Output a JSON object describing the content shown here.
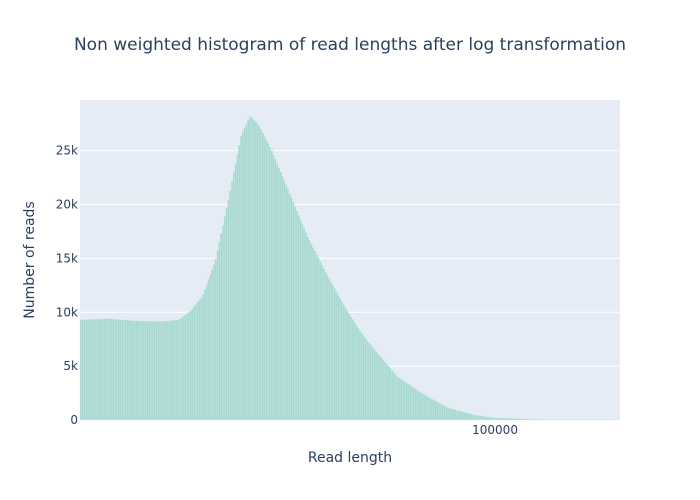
{
  "chart_data": {
    "type": "bar",
    "title": "Non weighted histogram of read lengths after log transformation",
    "xlabel": "Read length",
    "ylabel": "Number of reads",
    "x_scale": "log",
    "xlim": [
      1000,
      400000
    ],
    "ylim": [
      0,
      29700
    ],
    "x_ticks": [
      {
        "value": 100000,
        "label": "100000"
      }
    ],
    "y_ticks": [
      {
        "value": 0,
        "label": "0"
      },
      {
        "value": 5000,
        "label": "5k"
      },
      {
        "value": 10000,
        "label": "10k"
      },
      {
        "value": 15000,
        "label": "15k"
      },
      {
        "value": 20000,
        "label": "20k"
      },
      {
        "value": 25000,
        "label": "25k"
      }
    ],
    "bar_color": "#a9d8d0",
    "plot_background": "#e5ecf6",
    "grid": true,
    "legend": "none",
    "bin_count": 300,
    "profile": [
      [
        1000,
        9300
      ],
      [
        1350,
        9400
      ],
      [
        1850,
        9200
      ],
      [
        2500,
        9150
      ],
      [
        3000,
        9300
      ],
      [
        3400,
        10100
      ],
      [
        3900,
        11500
      ],
      [
        4500,
        14800
      ],
      [
        5200,
        20500
      ],
      [
        6000,
        26500
      ],
      [
        6600,
        28200
      ],
      [
        7200,
        27500
      ],
      [
        8300,
        25200
      ],
      [
        10000,
        21500
      ],
      [
        12500,
        17000
      ],
      [
        15300,
        13700
      ],
      [
        19000,
        10400
      ],
      [
        23000,
        7900
      ],
      [
        28000,
        5900
      ],
      [
        34000,
        4000
      ],
      [
        45000,
        2400
      ],
      [
        60000,
        1100
      ],
      [
        80000,
        450
      ],
      [
        100000,
        200
      ],
      [
        140000,
        80
      ],
      [
        200000,
        30
      ],
      [
        280000,
        10
      ],
      [
        400000,
        5
      ]
    ]
  }
}
